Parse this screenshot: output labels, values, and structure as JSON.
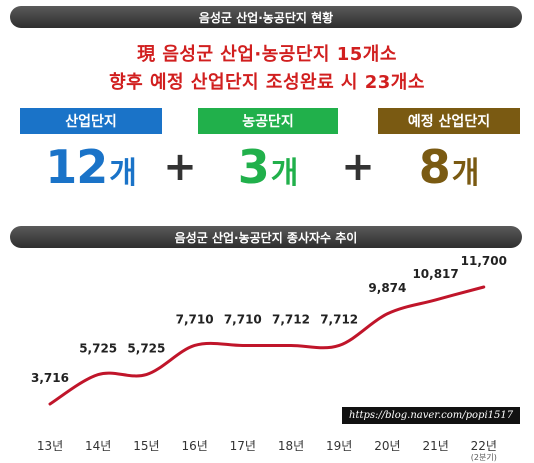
{
  "top_banner": "음성군 산업·농공단지 현황",
  "headline_1": "現 음성군 산업·농공단지 15개소",
  "headline_2": "향후 예정 산업단지 조성완료 시 23개소",
  "categories": [
    {
      "label": "산업단지",
      "count": "12",
      "unit": "개",
      "color": "#1a73c8"
    },
    {
      "label": "농공단지",
      "count": "3",
      "unit": "개",
      "color": "#21b04b"
    },
    {
      "label": "예정 산업단지",
      "count": "8",
      "unit": "개",
      "color": "#7a5a12"
    }
  ],
  "plus_sign": "+",
  "chart_banner": "음성군 산업·농공단지 종사자수 추이",
  "watermark": "https://blog.naver.com/popi1517",
  "chart_data": {
    "type": "line",
    "title": "음성군 산업·농공단지 종사자수 추이",
    "categories": [
      "13년",
      "14년",
      "15년",
      "16년",
      "17년",
      "18년",
      "19년",
      "20년",
      "21년",
      "22년"
    ],
    "category_notes": [
      "",
      "",
      "",
      "",
      "",
      "",
      "",
      "",
      "",
      "(2분기)"
    ],
    "values": [
      3716,
      5725,
      5725,
      7710,
      7710,
      7712,
      7712,
      9874,
      10817,
      11700
    ],
    "value_labels": [
      "3,716",
      "5,725",
      "5,725",
      "7,710",
      "7,710",
      "7,712",
      "7,712",
      "9,874",
      "10,817",
      "11,700"
    ],
    "line_color": "#c0152a",
    "grid": false,
    "legend": "none"
  }
}
